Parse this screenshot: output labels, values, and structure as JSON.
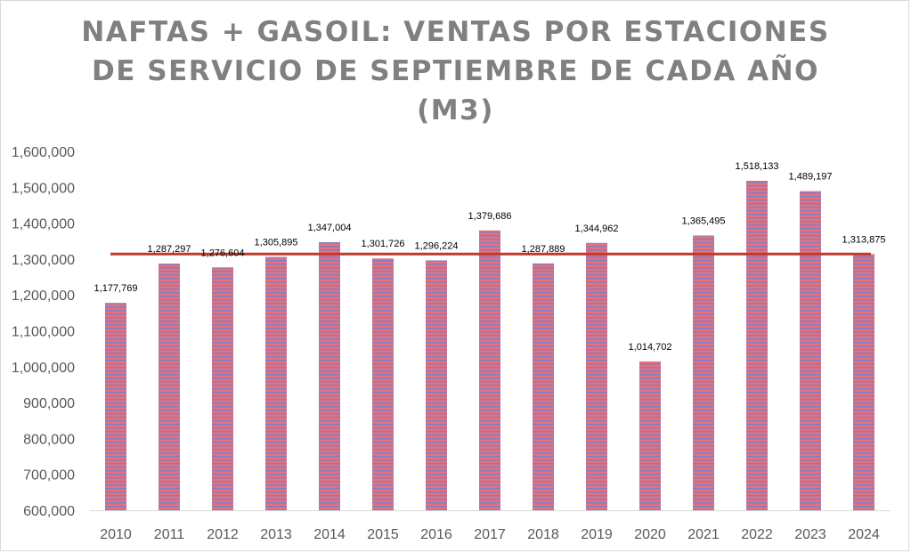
{
  "chart_data": {
    "type": "bar",
    "title_lines": [
      "NAFTAS + GASOIL: VENTAS POR ESTACIONES",
      "DE SERVICIO DE SEPTIEMBRE DE CADA AÑO",
      "(M3)"
    ],
    "categories": [
      "2010",
      "2011",
      "2012",
      "2013",
      "2014",
      "2015",
      "2016",
      "2017",
      "2018",
      "2019",
      "2020",
      "2021",
      "2022",
      "2023",
      "2024"
    ],
    "values": [
      1177769,
      1287297,
      1276604,
      1305895,
      1347004,
      1301726,
      1296224,
      1379686,
      1287889,
      1344962,
      1014702,
      1365495,
      1518133,
      1489197,
      1313875
    ],
    "value_labels": [
      "1,177,769",
      "1,287,297",
      "1,276,604",
      "1,305,895",
      "1,347,004",
      "1,301,726",
      "1,296,224",
      "1,379,686",
      "1,287,889",
      "1,344,962",
      "1,014,702",
      "1,365,495",
      "1,518,133",
      "1,489,197",
      "1,313,875"
    ],
    "reference_line": {
      "value": 1314000,
      "color": "#c0392b"
    },
    "ylim": [
      600000,
      1600000
    ],
    "yticks": [
      600000,
      700000,
      800000,
      900000,
      1000000,
      1100000,
      1200000,
      1300000,
      1400000,
      1500000,
      1600000
    ],
    "ytick_labels": [
      "600,000",
      "700,000",
      "800,000",
      "900,000",
      "1,000,000",
      "1,100,000",
      "1,200,000",
      "1,300,000",
      "1,400,000",
      "1,500,000",
      "1,600,000"
    ],
    "xlabel": "",
    "ylabel": "",
    "bar_color": "#e8707a",
    "bar_stripe_color": "#7b7fc8",
    "grid": false
  }
}
